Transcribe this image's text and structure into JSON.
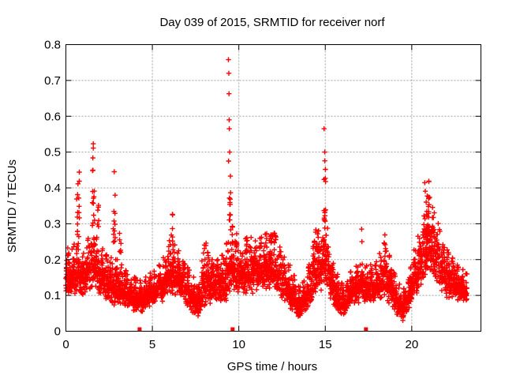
{
  "window": {
    "background": "#ffffff"
  },
  "chart_data": {
    "type": "scatter",
    "title": "Day 039 of 2015, SRMTID for receiver norf",
    "xlabel": "GPS time / hours",
    "ylabel": "SRMTID / TECUs",
    "xlim": [
      0,
      24
    ],
    "ylim": [
      0,
      0.8
    ],
    "xticks": {
      "values": [
        0,
        5,
        10,
        15,
        20
      ],
      "labels": [
        "0",
        "5",
        "10",
        "15",
        "20"
      ]
    },
    "yticks": {
      "values": [
        0,
        0.1,
        0.2,
        0.3,
        0.4,
        0.5,
        0.6,
        0.7,
        0.8
      ],
      "labels": [
        "0",
        "0.1",
        "0.2",
        "0.3",
        "0.4",
        "0.5",
        "0.6",
        "0.7",
        "0.8"
      ]
    },
    "grid": {
      "show": true,
      "color": "#a0a0a0",
      "style": "dotted"
    },
    "frame_color": "#000000",
    "marker": {
      "shape": "plus",
      "color": "#ff0000",
      "size": 7
    },
    "band": {
      "dt": 0.0083,
      "t_end": 23.2,
      "extra_point_prob": 0.35,
      "envelope": [
        [
          0.0,
          0.09,
          0.24
        ],
        [
          0.3,
          0.1,
          0.22
        ],
        [
          0.6,
          0.1,
          0.26
        ],
        [
          0.9,
          0.09,
          0.22
        ],
        [
          1.2,
          0.1,
          0.24
        ],
        [
          1.5,
          0.11,
          0.3
        ],
        [
          1.8,
          0.1,
          0.26
        ],
        [
          2.1,
          0.09,
          0.24
        ],
        [
          2.4,
          0.08,
          0.22
        ],
        [
          2.7,
          0.07,
          0.2
        ],
        [
          3.0,
          0.07,
          0.2
        ],
        [
          3.3,
          0.06,
          0.18
        ],
        [
          3.6,
          0.06,
          0.16
        ],
        [
          4.0,
          0.05,
          0.15
        ],
        [
          4.4,
          0.05,
          0.14
        ],
        [
          4.8,
          0.06,
          0.16
        ],
        [
          5.2,
          0.07,
          0.17
        ],
        [
          5.6,
          0.08,
          0.2
        ],
        [
          6.0,
          0.1,
          0.26
        ],
        [
          6.3,
          0.1,
          0.24
        ],
        [
          6.6,
          0.09,
          0.22
        ],
        [
          7.0,
          0.07,
          0.18
        ],
        [
          7.4,
          0.04,
          0.15
        ],
        [
          7.7,
          0.04,
          0.14
        ],
        [
          8.0,
          0.06,
          0.24
        ],
        [
          8.4,
          0.07,
          0.2
        ],
        [
          8.8,
          0.08,
          0.2
        ],
        [
          9.2,
          0.08,
          0.22
        ],
        [
          9.5,
          0.1,
          0.3
        ],
        [
          9.8,
          0.1,
          0.28
        ],
        [
          10.2,
          0.1,
          0.24
        ],
        [
          10.5,
          0.1,
          0.27
        ],
        [
          11.0,
          0.1,
          0.25
        ],
        [
          11.5,
          0.1,
          0.27
        ],
        [
          12.0,
          0.11,
          0.28
        ],
        [
          12.5,
          0.09,
          0.22
        ],
        [
          13.0,
          0.06,
          0.18
        ],
        [
          13.5,
          0.03,
          0.12
        ],
        [
          13.9,
          0.05,
          0.15
        ],
        [
          14.3,
          0.08,
          0.24
        ],
        [
          14.7,
          0.1,
          0.3
        ],
        [
          15.0,
          0.12,
          0.32
        ],
        [
          15.3,
          0.09,
          0.24
        ],
        [
          15.7,
          0.05,
          0.16
        ],
        [
          16.1,
          0.04,
          0.12
        ],
        [
          16.5,
          0.07,
          0.17
        ],
        [
          17.0,
          0.08,
          0.19
        ],
        [
          17.5,
          0.08,
          0.18
        ],
        [
          18.0,
          0.08,
          0.2
        ],
        [
          18.4,
          0.09,
          0.25
        ],
        [
          18.8,
          0.07,
          0.2
        ],
        [
          19.2,
          0.04,
          0.14
        ],
        [
          19.5,
          0.02,
          0.11
        ],
        [
          19.8,
          0.05,
          0.16
        ],
        [
          20.2,
          0.09,
          0.24
        ],
        [
          20.6,
          0.12,
          0.3
        ],
        [
          21.0,
          0.15,
          0.38
        ],
        [
          21.3,
          0.14,
          0.33
        ],
        [
          21.7,
          0.11,
          0.28
        ],
        [
          22.1,
          0.09,
          0.22
        ],
        [
          22.6,
          0.08,
          0.19
        ],
        [
          23.0,
          0.07,
          0.17
        ],
        [
          23.2,
          0.08,
          0.16
        ]
      ]
    },
    "clusters": [
      {
        "t": 0.7,
        "w": 0.18,
        "n": 16,
        "v0": 0.26,
        "v1": 0.48
      },
      {
        "t": 1.6,
        "w": 0.14,
        "n": 14,
        "v0": 0.3,
        "v1": 0.56
      },
      {
        "t": 1.85,
        "w": 0.1,
        "n": 6,
        "v0": 0.28,
        "v1": 0.42
      },
      {
        "t": 2.8,
        "w": 0.12,
        "n": 12,
        "v0": 0.24,
        "v1": 0.46
      },
      {
        "t": 3.15,
        "w": 0.1,
        "n": 6,
        "v0": 0.22,
        "v1": 0.36
      },
      {
        "t": 6.15,
        "w": 0.12,
        "n": 7,
        "v0": 0.24,
        "v1": 0.35
      },
      {
        "t": 8.05,
        "w": 0.12,
        "n": 5,
        "v0": 0.2,
        "v1": 0.27
      },
      {
        "t": 9.49,
        "w": 0.09,
        "n": 12,
        "v0": 0.3,
        "v1": 0.435
      },
      {
        "t": 10.45,
        "w": 0.1,
        "n": 5,
        "v0": 0.22,
        "v1": 0.28
      },
      {
        "t": 11.9,
        "w": 0.15,
        "n": 5,
        "v0": 0.24,
        "v1": 0.3
      },
      {
        "t": 14.5,
        "w": 0.12,
        "n": 6,
        "v0": 0.22,
        "v1": 0.3
      },
      {
        "t": 14.97,
        "w": 0.1,
        "n": 13,
        "v0": 0.3,
        "v1": 0.48
      },
      {
        "t": 18.45,
        "w": 0.1,
        "n": 5,
        "v0": 0.22,
        "v1": 0.33
      },
      {
        "t": 20.9,
        "w": 0.3,
        "n": 25,
        "v0": 0.25,
        "v1": 0.42
      },
      {
        "t": 21.15,
        "w": 0.2,
        "n": 10,
        "v0": 0.22,
        "v1": 0.36
      }
    ],
    "isolated_points": [
      [
        9.4,
        0.758
      ],
      [
        9.42,
        0.72
      ],
      [
        9.43,
        0.663
      ],
      [
        9.44,
        0.59
      ],
      [
        9.45,
        0.565
      ],
      [
        9.47,
        0.5
      ],
      [
        9.41,
        0.475
      ],
      [
        14.93,
        0.565
      ],
      [
        14.97,
        0.5
      ],
      [
        17.1,
        0.285
      ],
      [
        17.12,
        0.25
      ]
    ],
    "event_markers": {
      "shape": "square",
      "color": "#ff0000",
      "size": 5,
      "value": 0,
      "times": [
        4.26,
        9.64,
        17.35
      ]
    }
  }
}
